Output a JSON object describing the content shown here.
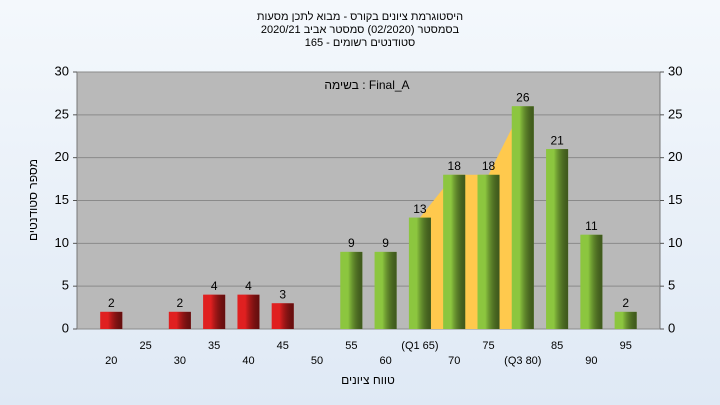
{
  "chart_data": {
    "type": "bar",
    "title": "היסטוגרמת ציונים בקורס - מבוא לתכן מסעות",
    "subtitle": [
      "בסמסטר  (02/2020)  סמסטר אביב 2020/21",
      "סטודנטים רשומים - 165"
    ],
    "annotation": "בשימה : Final_A",
    "x_label": "טווח ציונים",
    "y_label": "מספר סטודנטים",
    "categories": [
      "20",
      "25",
      "30",
      "35",
      "40",
      "45",
      "50",
      "55",
      "60",
      "(Q1 65)",
      "70",
      "75",
      "(Q3 80)",
      "85",
      "90",
      "95"
    ],
    "values": [
      2,
      0,
      2,
      4,
      4,
      3,
      0,
      9,
      9,
      13,
      18,
      18,
      26,
      21,
      11,
      2
    ],
    "colors": [
      "#e02020",
      "#e02020",
      "#e02020",
      "#e02020",
      "#e02020",
      "#e02020",
      "#e02020",
      "#8cc63f",
      "#8cc63f",
      "#8cc63f",
      "#8cc63f",
      "#8cc63f",
      "#8cc63f",
      "#8cc63f",
      "#8cc63f",
      "#8cc63f"
    ],
    "quartile_area_color": "#ffc94d",
    "ylim": [
      0,
      30
    ],
    "yticks": [
      0,
      5,
      10,
      15,
      20,
      25,
      30
    ],
    "y2lim": [
      0,
      30
    ],
    "y2ticks": [
      0,
      5,
      10,
      15,
      20,
      25,
      30
    ],
    "grid": true
  }
}
